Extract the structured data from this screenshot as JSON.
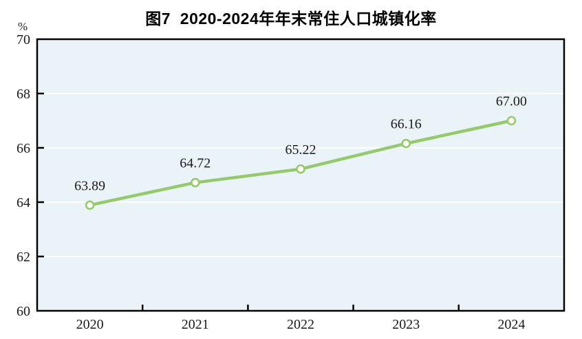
{
  "title": "图7  2020-2024年年末常住人口城镇化率",
  "unit_label": "%",
  "colors": {
    "line": "#95C96B",
    "marker_fill": "#FDFEFB",
    "marker_stroke": "#95C96B",
    "plot_bg": "#EAF3F7",
    "grid": "#FFFFFF",
    "axis": "#000000",
    "text": "#1A1A1A"
  },
  "chart_data": {
    "type": "line",
    "title": "图7  2020-2024年年末常住人口城镇化率",
    "categories": [
      "2020",
      "2021",
      "2022",
      "2023",
      "2024"
    ],
    "series": [
      {
        "name": "年末常住人口城镇化率",
        "values": [
          63.89,
          64.72,
          65.22,
          66.16,
          67.0
        ]
      }
    ],
    "data_labels": [
      "63.89",
      "64.72",
      "65.22",
      "66.16",
      "67.00"
    ],
    "xlabel": "",
    "ylabel": "%",
    "ylim": [
      60,
      70
    ],
    "ytick_step": 2,
    "yticks": [
      60,
      62,
      64,
      66,
      68,
      70
    ],
    "grid": true,
    "legend_position": "none",
    "marker": "circle-open"
  }
}
